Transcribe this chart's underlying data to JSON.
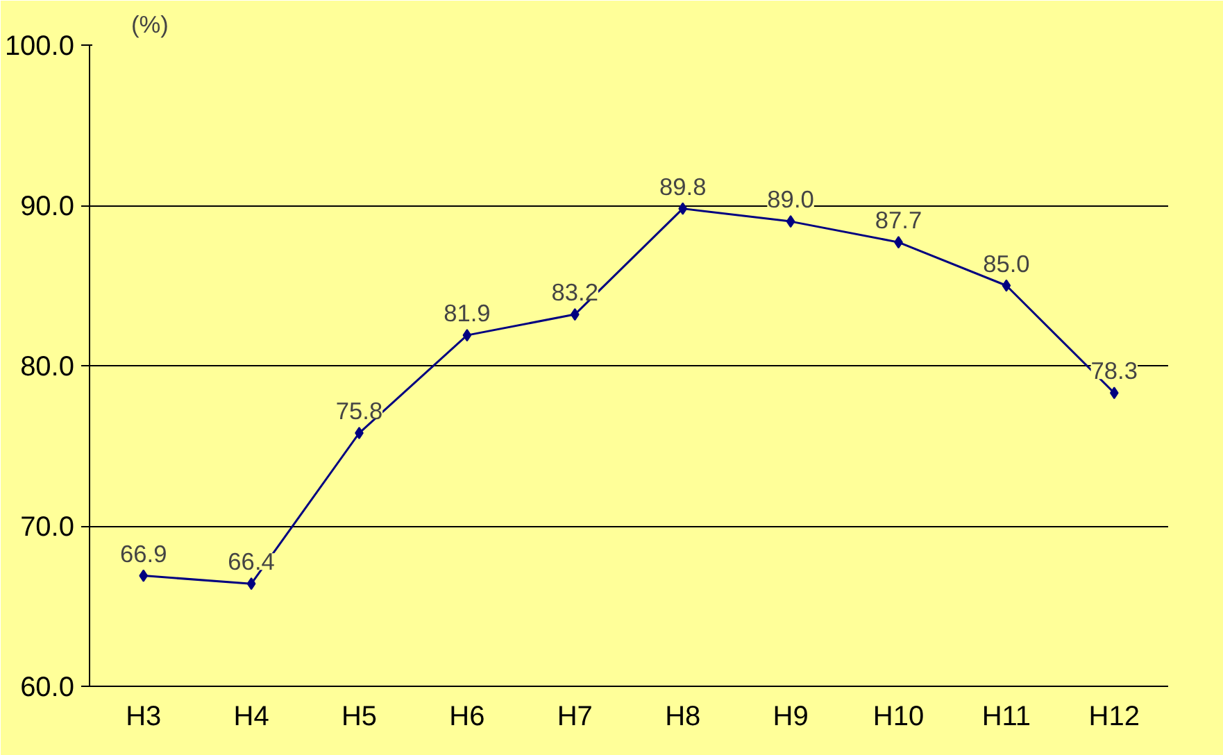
{
  "chart_data": {
    "type": "line",
    "ylabel": "(%)",
    "categories": [
      "H3",
      "H4",
      "H5",
      "H6",
      "H7",
      "H8",
      "H9",
      "H10",
      "H11",
      "H12"
    ],
    "series": [
      {
        "color": "#000080",
        "values": [
          66.9,
          66.4,
          75.8,
          81.9,
          83.2,
          89.8,
          89.0,
          87.7,
          85.0,
          78.3
        ]
      }
    ],
    "ylim": [
      60,
      100
    ],
    "yticks": [
      {
        "value": 60,
        "label": "60.0"
      },
      {
        "value": 70,
        "label": "70.0"
      },
      {
        "value": 80,
        "label": "80.0"
      },
      {
        "value": 90,
        "label": "90.0"
      },
      {
        "value": 100,
        "label": "100.0"
      }
    ],
    "value_labels": [
      "66.9",
      "66.4",
      "75.8",
      "81.9",
      "83.2",
      "89.8",
      "89.0",
      "87.7",
      "85.0",
      "78.3"
    ],
    "grid": "y",
    "marker": "diamond",
    "line_style": "solid"
  }
}
